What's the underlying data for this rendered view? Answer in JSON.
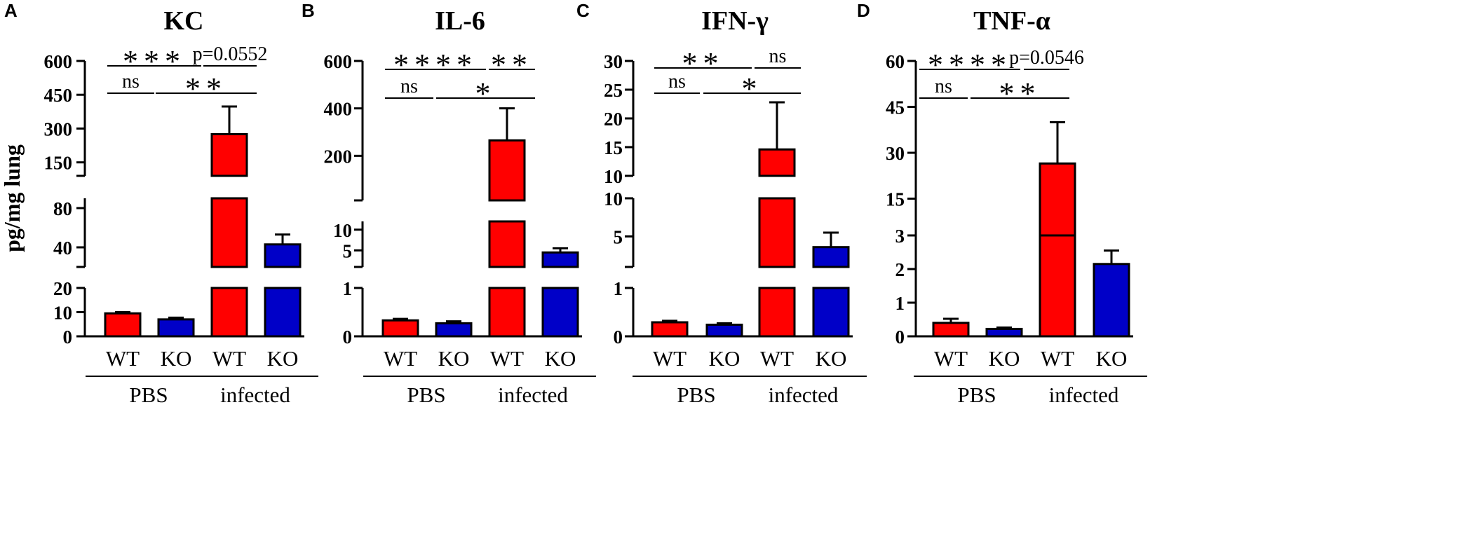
{
  "figure": {
    "ylabel": "pg/mg lung",
    "bar_labels": [
      "WT",
      "KO",
      "WT",
      "KO"
    ],
    "group_labels": [
      "PBS",
      "infected"
    ],
    "colors": {
      "WT": "#ff0000",
      "KO": "#0000c8",
      "axis": "#000000"
    }
  },
  "chart_data": [
    {
      "type": "bar",
      "letter": "A",
      "title": "KC",
      "ylabel": "pg/mg lung",
      "categories": [
        "WT",
        "KO",
        "WT",
        "KO"
      ],
      "groups": [
        "PBS",
        "infected"
      ],
      "values": [
        9.5,
        7,
        275,
        43
      ],
      "errors": [
        10,
        7.7,
        398,
        53
      ],
      "colors": [
        "#ff0000",
        "#0000c8",
        "#ff0000",
        "#0000c8"
      ],
      "segments": [
        {
          "range": [
            0,
            20
          ],
          "ticks": [
            0,
            10,
            20
          ],
          "tick_labels": [
            "0",
            "10",
            "20"
          ]
        },
        {
          "range": [
            20,
            90
          ],
          "ticks": [
            20,
            40,
            80
          ],
          "tick_labels": [
            "",
            "40",
            "80"
          ]
        },
        {
          "range": [
            90,
            600
          ],
          "ticks": [
            90,
            150,
            300,
            450,
            600
          ],
          "tick_labels": [
            "",
            "150",
            "300",
            "450",
            "600"
          ]
        }
      ],
      "significance": [
        {
          "from": 0,
          "to": 2,
          "label": "***"
        },
        {
          "from": 2,
          "to": 3,
          "label": "p=0.0552"
        },
        {
          "from": 0,
          "to": 1,
          "label": "ns"
        },
        {
          "from": 1,
          "to": 3,
          "label": "**"
        }
      ]
    },
    {
      "type": "bar",
      "letter": "B",
      "title": "IL-6",
      "ylabel": "pg/mg lung",
      "categories": [
        "WT",
        "KO",
        "WT",
        "KO"
      ],
      "groups": [
        "PBS",
        "infected"
      ],
      "values": [
        0.33,
        0.27,
        265,
        4.5
      ],
      "errors": [
        0.36,
        0.31,
        400,
        5.5
      ],
      "colors": [
        "#ff0000",
        "#0000c8",
        "#ff0000",
        "#0000c8"
      ],
      "segments": [
        {
          "range": [
            0,
            1
          ],
          "ticks": [
            0,
            1
          ],
          "tick_labels": [
            "0",
            "1"
          ]
        },
        {
          "range": [
            1,
            12
          ],
          "ticks": [
            1,
            5,
            10
          ],
          "tick_labels": [
            "",
            "5",
            "10"
          ]
        },
        {
          "range": [
            12,
            600
          ],
          "ticks": [
            12,
            200,
            400,
            600
          ],
          "tick_labels": [
            "",
            "200",
            "400",
            "600"
          ]
        }
      ],
      "significance": [
        {
          "from": 0,
          "to": 2,
          "label": "****"
        },
        {
          "from": 2,
          "to": 3,
          "label": "**"
        },
        {
          "from": 0,
          "to": 1,
          "label": "ns"
        },
        {
          "from": 1,
          "to": 3,
          "label": "*"
        }
      ]
    },
    {
      "type": "bar",
      "letter": "C",
      "title": "IFN-γ",
      "ylabel": "pg/mg lung",
      "categories": [
        "WT",
        "KO",
        "WT",
        "KO"
      ],
      "groups": [
        "PBS",
        "infected"
      ],
      "values": [
        0.29,
        0.24,
        14.6,
        3.6
      ],
      "errors": [
        0.32,
        0.27,
        22.8,
        5.5
      ],
      "colors": [
        "#ff0000",
        "#0000c8",
        "#ff0000",
        "#0000c8"
      ],
      "segments": [
        {
          "range": [
            0,
            1
          ],
          "ticks": [
            0,
            1
          ],
          "tick_labels": [
            "0",
            "1"
          ]
        },
        {
          "range": [
            1,
            10
          ],
          "ticks": [
            1,
            5,
            10
          ],
          "tick_labels": [
            "",
            "5",
            "10"
          ]
        },
        {
          "range": [
            10,
            30
          ],
          "ticks": [
            10,
            15,
            20,
            25,
            30
          ],
          "tick_labels": [
            "10",
            "15",
            "20",
            "25",
            "30"
          ]
        }
      ],
      "significance": [
        {
          "from": 0,
          "to": 2,
          "label": "**"
        },
        {
          "from": 2,
          "to": 3,
          "label": "ns"
        },
        {
          "from": 0,
          "to": 1,
          "label": "ns"
        },
        {
          "from": 1,
          "to": 3,
          "label": "*"
        }
      ]
    },
    {
      "type": "bar",
      "letter": "D",
      "title": "TNF-α",
      "ylabel": "pg/mg lung",
      "categories": [
        "WT",
        "KO",
        "WT",
        "KO"
      ],
      "groups": [
        "PBS",
        "infected"
      ],
      "values": [
        0.4,
        0.22,
        26.5,
        2.15
      ],
      "errors": [
        0.52,
        0.26,
        40,
        2.55
      ],
      "colors": [
        "#ff0000",
        "#0000c8",
        "#ff0000",
        "#0000c8"
      ],
      "segments": [
        {
          "range": [
            0,
            3
          ],
          "ticks": [
            0,
            1,
            2,
            3
          ],
          "tick_labels": [
            "0",
            "1",
            "2",
            "3"
          ]
        },
        {
          "range": [
            3,
            60
          ],
          "ticks": [
            3,
            15,
            30,
            45,
            60
          ],
          "tick_labels": [
            "",
            "15",
            "30",
            "45",
            "60"
          ]
        }
      ],
      "significance": [
        {
          "from": 0,
          "to": 2,
          "label": "****"
        },
        {
          "from": 2,
          "to": 3,
          "label": "p=0.0546"
        },
        {
          "from": 0,
          "to": 1,
          "label": "ns"
        },
        {
          "from": 1,
          "to": 3,
          "label": "**"
        }
      ]
    }
  ]
}
